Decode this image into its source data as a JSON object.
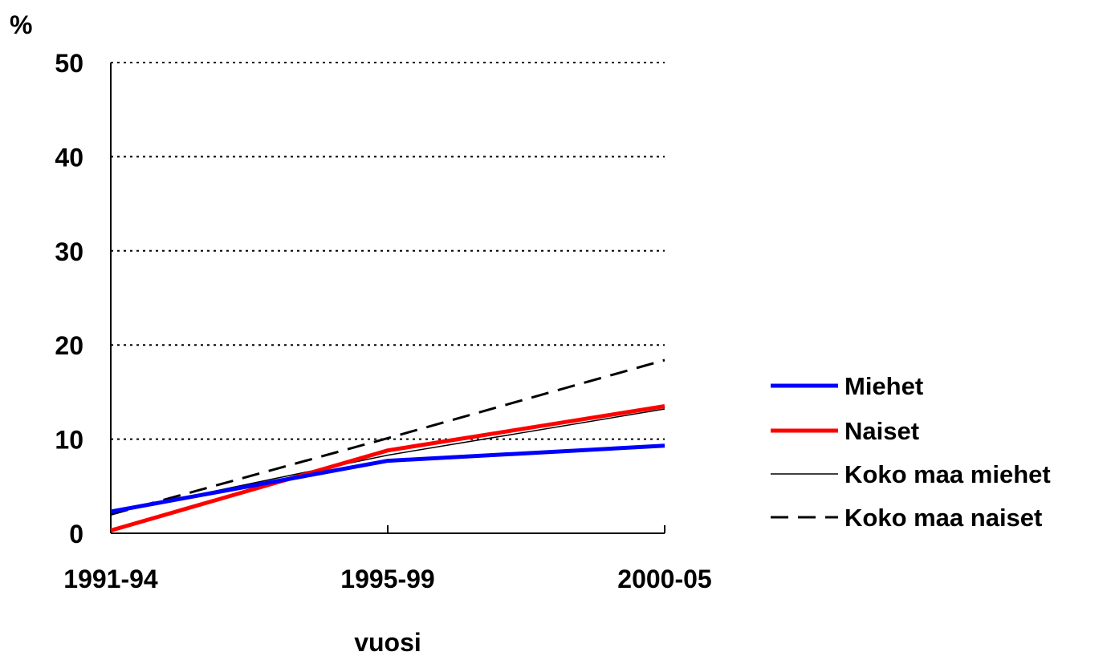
{
  "chart_data": {
    "type": "line",
    "title": "",
    "xlabel": "vuosi",
    "ylabel": "%",
    "categories": [
      "1991-94",
      "1995-99",
      "2000-05"
    ],
    "ylim": [
      0,
      50
    ],
    "yticks": [
      0,
      10,
      20,
      30,
      40,
      50
    ],
    "grid": "horizontal dotted",
    "legend_position": "right",
    "series": [
      {
        "name": "Miehet",
        "values": [
          2.3,
          7.7,
          9.3
        ],
        "color": "#0000ff",
        "style": "solid-thick"
      },
      {
        "name": "Naiset",
        "values": [
          0.3,
          8.8,
          13.5
        ],
        "color": "#ff0000",
        "style": "solid-thick"
      },
      {
        "name": "Koko maa miehet",
        "values": [
          2.2,
          8.3,
          13.2
        ],
        "color": "#000000",
        "style": "solid-thin"
      },
      {
        "name": "Koko maa naiset",
        "values": [
          2.0,
          10.1,
          18.4
        ],
        "color": "#000000",
        "style": "dashed"
      }
    ]
  }
}
